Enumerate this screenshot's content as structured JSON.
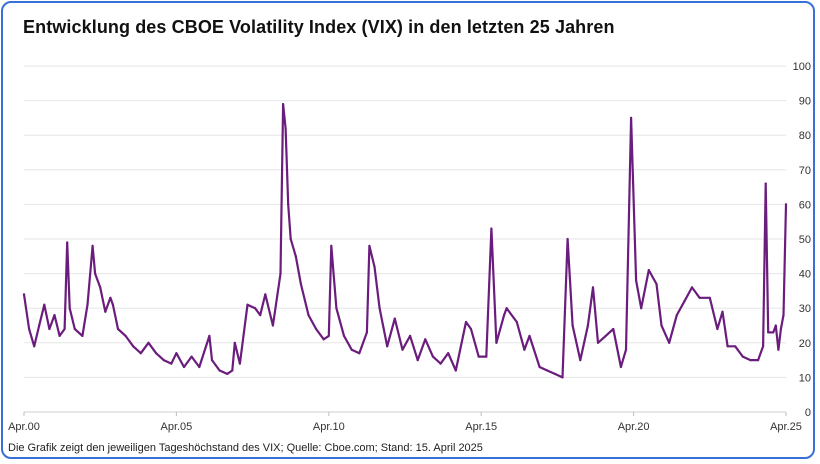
{
  "chart_data": {
    "type": "line",
    "title": "Entwicklung des CBOE Volatility Index (VIX) in den letzten 25 Jahren",
    "footnote": "Die Grafik zeigt den jeweiligen Tageshöchstand des VIX; Quelle: Cboe.com; Stand: 15. April 2025",
    "xlabel": "",
    "ylabel": "",
    "x_ticks": [
      "Apr.00",
      "Apr.05",
      "Apr.10",
      "Apr.15",
      "Apr.20",
      "Apr.25"
    ],
    "y_ticks": [
      0,
      10,
      20,
      30,
      40,
      50,
      60,
      70,
      80,
      90,
      100
    ],
    "xlim": [
      "2000-04",
      "2025-04"
    ],
    "ylim": [
      0,
      100
    ],
    "grid": true,
    "y_axis_position": "right",
    "series": [
      {
        "name": "",
        "color": "#6b1d7d",
        "x": [
          "2000-04",
          "2000-06",
          "2000-08",
          "2000-10",
          "2000-12",
          "2001-02",
          "2001-04",
          "2001-06",
          "2001-08",
          "2001-09",
          "2001-10",
          "2001-12",
          "2002-03",
          "2002-05",
          "2002-07",
          "2002-08",
          "2002-10",
          "2002-12",
          "2003-02",
          "2003-03",
          "2003-05",
          "2003-08",
          "2003-11",
          "2004-02",
          "2004-05",
          "2004-08",
          "2004-11",
          "2005-02",
          "2005-04",
          "2005-07",
          "2005-10",
          "2006-01",
          "2006-05",
          "2006-06",
          "2006-09",
          "2006-12",
          "2007-02",
          "2007-03",
          "2007-05",
          "2007-08",
          "2007-11",
          "2008-01",
          "2008-03",
          "2008-06",
          "2008-09",
          "2008-10",
          "2008-11",
          "2008-12",
          "2009-01",
          "2009-03",
          "2009-05",
          "2009-08",
          "2009-11",
          "2010-02",
          "2010-04",
          "2010-05",
          "2010-07",
          "2010-10",
          "2011-01",
          "2011-04",
          "2011-07",
          "2011-08",
          "2011-10",
          "2011-12",
          "2012-03",
          "2012-06",
          "2012-09",
          "2012-12",
          "2013-03",
          "2013-06",
          "2013-09",
          "2013-12",
          "2014-03",
          "2014-06",
          "2014-10",
          "2014-12",
          "2015-03",
          "2015-06",
          "2015-08",
          "2015-10",
          "2016-01",
          "2016-02",
          "2016-06",
          "2016-09",
          "2016-11",
          "2017-03",
          "2017-06",
          "2017-09",
          "2017-12",
          "2018-02",
          "2018-04",
          "2018-07",
          "2018-10",
          "2018-12",
          "2019-02",
          "2019-05",
          "2019-08",
          "2019-11",
          "2020-01",
          "2020-03",
          "2020-05",
          "2020-07",
          "2020-10",
          "2021-01",
          "2021-03",
          "2021-06",
          "2021-09",
          "2021-12",
          "2022-03",
          "2022-05",
          "2022-06",
          "2022-10",
          "2023-01",
          "2023-03",
          "2023-05",
          "2023-08",
          "2023-11",
          "2024-02",
          "2024-05",
          "2024-07",
          "2024-08",
          "2024-09",
          "2024-11",
          "2024-12",
          "2025-01",
          "2025-02",
          "2025-03",
          "2025-04"
        ],
        "values": [
          34,
          24,
          19,
          25,
          31,
          24,
          28,
          22,
          24,
          49,
          30,
          24,
          22,
          31,
          48,
          40,
          36,
          29,
          33,
          31,
          24,
          22,
          19,
          17,
          20,
          17,
          15,
          14,
          17,
          13,
          16,
          13,
          22,
          15,
          12,
          11,
          12,
          20,
          14,
          31,
          30,
          28,
          34,
          25,
          40,
          89,
          82,
          60,
          50,
          45,
          37,
          28,
          24,
          21,
          22,
          48,
          30,
          22,
          18,
          17,
          23,
          48,
          42,
          30,
          19,
          27,
          18,
          22,
          15,
          21,
          16,
          14,
          17,
          12,
          26,
          24,
          16,
          16,
          53,
          20,
          28,
          30,
          26,
          18,
          22,
          13,
          12,
          11,
          10,
          50,
          25,
          15,
          25,
          36,
          20,
          22,
          24,
          13,
          18,
          85,
          38,
          30,
          41,
          37,
          25,
          20,
          28,
          32,
          36,
          34,
          33,
          33,
          24,
          29,
          19,
          19,
          16,
          15,
          15,
          19,
          66,
          23,
          23,
          25,
          18,
          24,
          28,
          60
        ]
      }
    ]
  }
}
